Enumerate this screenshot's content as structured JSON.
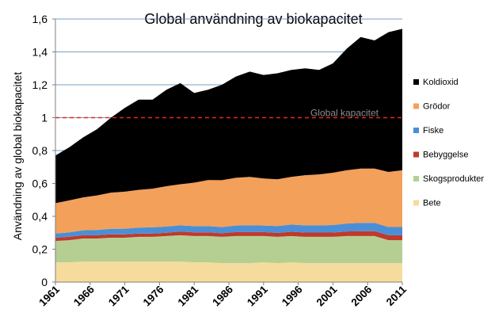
{
  "chart_data": {
    "type": "area",
    "stacked": true,
    "title": "Global  användning av biokapacitet",
    "xlabel": "",
    "ylabel": "Användning av global biokapacitet",
    "ylim": [
      0,
      1.6
    ],
    "yticks": [
      "0",
      "0,2",
      "0,4",
      "0,6",
      "0,8",
      "1",
      "1,2",
      "1,4",
      "1,6"
    ],
    "xticks": [
      "1961",
      "1966",
      "1971",
      "1976",
      "1981",
      "1986",
      "1991",
      "1996",
      "2001",
      "2006",
      "2011"
    ],
    "grid": true,
    "legend_position": "right",
    "x": [
      1961,
      1963,
      1965,
      1967,
      1969,
      1971,
      1973,
      1975,
      1977,
      1979,
      1981,
      1983,
      1985,
      1987,
      1989,
      1991,
      1993,
      1995,
      1997,
      1999,
      2001,
      2003,
      2005,
      2007,
      2009,
      2011
    ],
    "totals": [
      0.77,
      0.82,
      0.88,
      0.93,
      1.0,
      1.06,
      1.11,
      1.11,
      1.17,
      1.21,
      1.15,
      1.17,
      1.2,
      1.25,
      1.28,
      1.26,
      1.27,
      1.29,
      1.3,
      1.29,
      1.33,
      1.42,
      1.49,
      1.47,
      1.52,
      1.54
    ],
    "series": [
      {
        "name": "Bete",
        "color": "#f6dc9c",
        "values": [
          0.12,
          0.12,
          0.125,
          0.125,
          0.125,
          0.125,
          0.125,
          0.125,
          0.125,
          0.125,
          0.12,
          0.12,
          0.115,
          0.115,
          0.115,
          0.12,
          0.115,
          0.12,
          0.115,
          0.115,
          0.115,
          0.115,
          0.115,
          0.115,
          0.115,
          0.115
        ]
      },
      {
        "name": "Skogsprodukter",
        "color": "#b5cf93",
        "values": [
          0.13,
          0.135,
          0.14,
          0.14,
          0.145,
          0.145,
          0.15,
          0.15,
          0.155,
          0.16,
          0.16,
          0.16,
          0.16,
          0.165,
          0.165,
          0.16,
          0.16,
          0.16,
          0.16,
          0.16,
          0.16,
          0.165,
          0.165,
          0.165,
          0.14,
          0.14
        ]
      },
      {
        "name": "Bebyggelse",
        "color": "#c0392b",
        "values": [
          0.02,
          0.02,
          0.02,
          0.02,
          0.02,
          0.02,
          0.02,
          0.02,
          0.02,
          0.022,
          0.022,
          0.022,
          0.022,
          0.024,
          0.024,
          0.024,
          0.024,
          0.026,
          0.026,
          0.026,
          0.026,
          0.028,
          0.03,
          0.03,
          0.03,
          0.03
        ]
      },
      {
        "name": "Fiske",
        "color": "#4a8fd6",
        "values": [
          0.025,
          0.027,
          0.03,
          0.032,
          0.034,
          0.035,
          0.036,
          0.038,
          0.038,
          0.038,
          0.038,
          0.038,
          0.038,
          0.04,
          0.042,
          0.04,
          0.042,
          0.044,
          0.044,
          0.044,
          0.046,
          0.048,
          0.05,
          0.05,
          0.05,
          0.05
        ]
      },
      {
        "name": "Grödor",
        "color": "#f3a05a",
        "values": [
          0.185,
          0.195,
          0.2,
          0.21,
          0.22,
          0.225,
          0.23,
          0.235,
          0.245,
          0.25,
          0.265,
          0.28,
          0.285,
          0.29,
          0.294,
          0.286,
          0.284,
          0.29,
          0.305,
          0.31,
          0.318,
          0.324,
          0.33,
          0.33,
          0.335,
          0.345
        ]
      },
      {
        "name": "Koldioxid",
        "color": "#000000",
        "values": [
          0.29,
          0.323,
          0.365,
          0.403,
          0.456,
          0.51,
          0.549,
          0.542,
          0.587,
          0.615,
          0.545,
          0.55,
          0.58,
          0.616,
          0.64,
          0.63,
          0.645,
          0.65,
          0.65,
          0.635,
          0.665,
          0.74,
          0.8,
          0.78,
          0.85,
          0.86
        ]
      }
    ],
    "reference_line": {
      "value": 1.0,
      "label": "Global kapacitet",
      "color": "#e8261c",
      "style": "dashed"
    }
  }
}
